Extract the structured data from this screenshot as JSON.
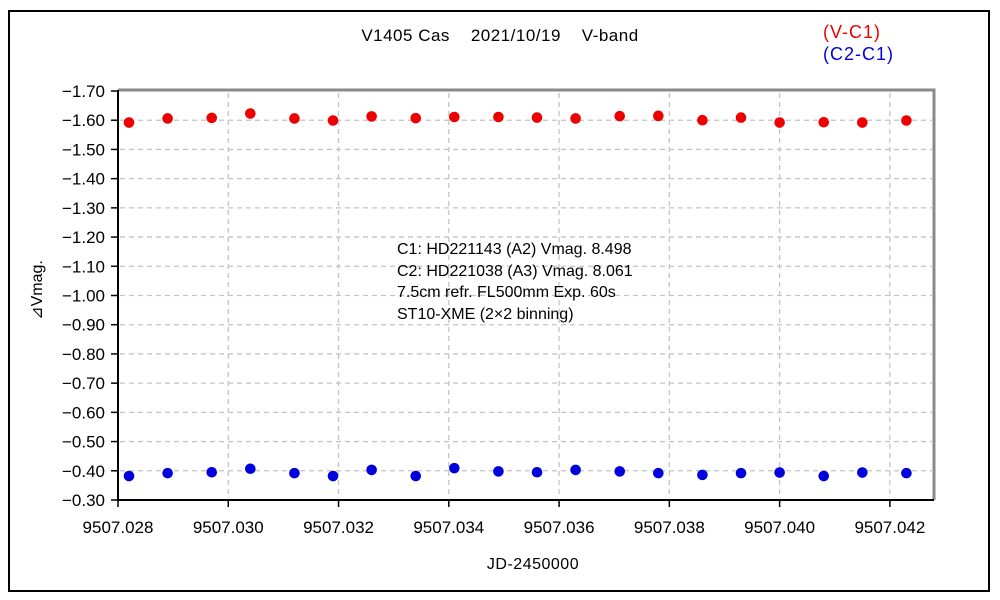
{
  "window": {
    "background": "#ffffff",
    "border_color": "#000000"
  },
  "chart_data": {
    "type": "scatter",
    "title": "V1405 Cas    2021/10/19    V-band",
    "xlabel": "JD-2450000",
    "ylabel": "⊿Vmag.",
    "legend_position": "top-right",
    "grid": true,
    "grid_style": "dashed",
    "xlim": [
      9507.028,
      9507.0428
    ],
    "ylim": [
      -1.7,
      -0.3
    ],
    "y_axis_note": "-1.70 at top, -0.30 at bottom (magnitude axis, brighter up)",
    "x_ticks": [
      9507.028,
      9507.03,
      9507.032,
      9507.034,
      9507.036,
      9507.038,
      9507.04,
      9507.042
    ],
    "x_tick_labels": [
      "9507.028",
      "9507.030",
      "9507.032",
      "9507.034",
      "9507.036",
      "9507.038",
      "9507.040",
      "9507.042"
    ],
    "y_ticks": [
      -1.7,
      -1.6,
      -1.5,
      -1.4,
      -1.3,
      -1.2,
      -1.1,
      -1.0,
      -0.9,
      -0.8,
      -0.7,
      -0.6,
      -0.5,
      -0.4,
      -0.3
    ],
    "y_tick_labels": [
      "−1.70",
      "−1.60",
      "−1.50",
      "−1.40",
      "−1.30",
      "−1.20",
      "−1.10",
      "−1.00",
      "−0.90",
      "−0.80",
      "−0.70",
      "−0.60",
      "−0.50",
      "−0.40",
      "−0.30"
    ],
    "x": [
      9507.0282,
      9507.0289,
      9507.0297,
      9507.0304,
      9507.0312,
      9507.0319,
      9507.0326,
      9507.0334,
      9507.0341,
      9507.0349,
      9507.0356,
      9507.0363,
      9507.0371,
      9507.0378,
      9507.0386,
      9507.0393,
      9507.04,
      9507.0408,
      9507.0415,
      9507.0423
    ],
    "series": [
      {
        "name": "(V-C1)",
        "color": "#ee0000",
        "values": [
          -1.592,
          -1.606,
          -1.608,
          -1.623,
          -1.606,
          -1.599,
          -1.613,
          -1.607,
          -1.611,
          -1.611,
          -1.609,
          -1.606,
          -1.614,
          -1.615,
          -1.6,
          -1.609,
          -1.592,
          -1.593,
          -1.592,
          -1.599
        ]
      },
      {
        "name": "(C2-C1)",
        "color": "#0000dd",
        "values": [
          -0.382,
          -0.392,
          -0.395,
          -0.407,
          -0.392,
          -0.382,
          -0.403,
          -0.382,
          -0.409,
          -0.398,
          -0.395,
          -0.403,
          -0.398,
          -0.392,
          -0.386,
          -0.392,
          -0.394,
          -0.382,
          -0.394,
          -0.392
        ]
      }
    ],
    "annotation": {
      "lines": [
        "C1: HD221143 (A2) Vmag. 8.498",
        "C2: HD221038 (A3) Vmag. 8.061",
        "7.5cm refr. FL500mm Exp. 60s",
        "ST10-XME (2×2 binning)"
      ]
    },
    "colors": {
      "grid": "#c4c4c4",
      "frame_top_right": "#8a8a8a",
      "frame_left_bottom": "#000000",
      "text": "#000000"
    }
  }
}
